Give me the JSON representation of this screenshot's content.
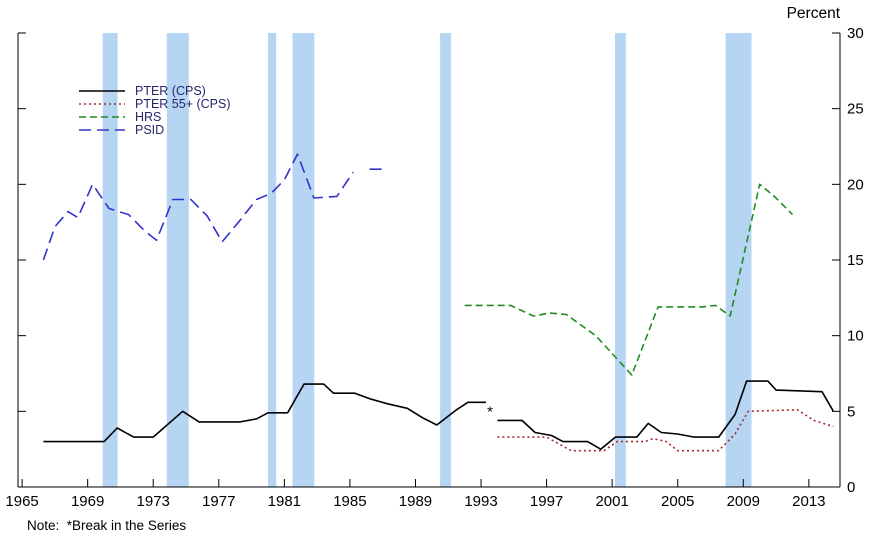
{
  "chart_data": {
    "type": "line",
    "title": "",
    "ylabel": "Percent",
    "note": "Note:  *Break in the Series",
    "xlim": [
      1964.75,
      2014.9
    ],
    "ylim": [
      0,
      30
    ],
    "xticks": [
      1965,
      1969,
      1973,
      1977,
      1981,
      1985,
      1989,
      1993,
      1997,
      2001,
      2005,
      2009,
      2013
    ],
    "yticks": [
      0,
      5,
      10,
      15,
      20,
      25,
      30
    ],
    "grid": false,
    "legend_position": "top-left",
    "recession_bands": {
      "color": "#b6d5f2",
      "periods": [
        [
          1969.92,
          1970.83
        ],
        [
          1973.83,
          1975.17
        ],
        [
          1980.0,
          1980.5
        ],
        [
          1981.5,
          1982.83
        ],
        [
          1990.5,
          1991.17
        ],
        [
          2001.17,
          2001.83
        ],
        [
          2007.92,
          2009.5
        ]
      ]
    },
    "series": [
      {
        "name": "PTER (CPS)",
        "color": "#000000",
        "style": "solid",
        "segments": [
          [
            [
              1966.3,
              3
            ],
            [
              1970,
              3
            ],
            [
              1970.8,
              3.9
            ],
            [
              1971.8,
              3.3
            ],
            [
              1973,
              3.3
            ],
            [
              1974.8,
              5
            ],
            [
              1975.8,
              4.3
            ],
            [
              1978.3,
              4.3
            ],
            [
              1979.3,
              4.5
            ],
            [
              1980,
              4.9
            ],
            [
              1981.2,
              4.9
            ],
            [
              1982.2,
              6.8
            ],
            [
              1983.4,
              6.8
            ],
            [
              1984,
              6.2
            ],
            [
              1985.3,
              6.2
            ],
            [
              1986.3,
              5.8
            ],
            [
              1987.3,
              5.5
            ],
            [
              1988.5,
              5.2
            ],
            [
              1989.4,
              4.6
            ],
            [
              1990.3,
              4.1
            ],
            [
              1991.5,
              5.1
            ],
            [
              1992.2,
              5.6
            ],
            [
              1993.3,
              5.6
            ]
          ],
          [
            [
              1994,
              4.4
            ],
            [
              1995.5,
              4.4
            ],
            [
              1996.3,
              3.6
            ],
            [
              1997.3,
              3.4
            ],
            [
              1998,
              3
            ],
            [
              1999.5,
              3
            ],
            [
              2000.3,
              2.5
            ],
            [
              2001.2,
              3.3
            ],
            [
              2002.5,
              3.3
            ],
            [
              2003.2,
              4.2
            ],
            [
              2004,
              3.6
            ],
            [
              2005,
              3.5
            ],
            [
              2006,
              3.3
            ],
            [
              2007.5,
              3.3
            ],
            [
              2008.5,
              4.8
            ],
            [
              2009.2,
              7
            ],
            [
              2010.5,
              7
            ],
            [
              2011,
              6.4
            ],
            [
              2013.8,
              6.3
            ],
            [
              2014.5,
              5
            ]
          ]
        ]
      },
      {
        "name": "PTER 55+ (CPS)",
        "color": "#a52a2a",
        "style": "dotted",
        "segments": [
          [
            [
              1994,
              3.3
            ],
            [
              1997,
              3.3
            ],
            [
              1998.5,
              2.4
            ],
            [
              2000.5,
              2.4
            ],
            [
              2001.3,
              3
            ],
            [
              2003,
              3
            ],
            [
              2003.5,
              3.2
            ],
            [
              2004.3,
              3
            ],
            [
              2005,
              2.4
            ],
            [
              2007.5,
              2.4
            ],
            [
              2008.5,
              3.5
            ],
            [
              2009.3,
              5
            ],
            [
              2012.3,
              5.1
            ],
            [
              2013.3,
              4.4
            ],
            [
              2014.5,
              4
            ]
          ]
        ]
      },
      {
        "name": "HRS",
        "color": "#228b22",
        "style": "dashed",
        "segments": [
          [
            [
              1992,
              12
            ],
            [
              1994.8,
              12
            ],
            [
              1996.2,
              11.3
            ],
            [
              1997.2,
              11.5
            ],
            [
              1998.2,
              11.4
            ],
            [
              2000,
              10
            ],
            [
              2002.2,
              7.4
            ],
            [
              2003.8,
              11.9
            ],
            [
              2006.5,
              11.9
            ],
            [
              2007.3,
              12
            ],
            [
              2008.2,
              11.3
            ],
            [
              2010,
              20
            ],
            [
              2010.9,
              19.2
            ],
            [
              2012,
              18
            ]
          ]
        ]
      },
      {
        "name": "PSID",
        "color": "#3333cc",
        "style": "longdash",
        "segments": [
          [
            [
              1966.3,
              15
            ],
            [
              1967,
              17.2
            ],
            [
              1967.8,
              18.2
            ],
            [
              1968.4,
              17.8
            ],
            [
              1969.3,
              20
            ],
            [
              1970.3,
              18.4
            ],
            [
              1971.5,
              18
            ],
            [
              1972.5,
              16.9
            ],
            [
              1973.2,
              16.3
            ],
            [
              1974.2,
              19
            ],
            [
              1975.3,
              19
            ],
            [
              1976.3,
              17.9
            ],
            [
              1977.2,
              16.2
            ],
            [
              1978.2,
              17.5
            ],
            [
              1979.3,
              19
            ],
            [
              1980.2,
              19.4
            ],
            [
              1981,
              20.3
            ],
            [
              1981.8,
              22
            ],
            [
              1982.8,
              19.1
            ],
            [
              1984.2,
              19.2
            ],
            [
              1985.2,
              20.8
            ]
          ],
          [
            [
              1986.2,
              21
            ],
            [
              1987.3,
              21
            ]
          ]
        ]
      }
    ],
    "annotations": [
      {
        "text": "*",
        "x": 1993.55,
        "y": 5.0
      }
    ]
  }
}
